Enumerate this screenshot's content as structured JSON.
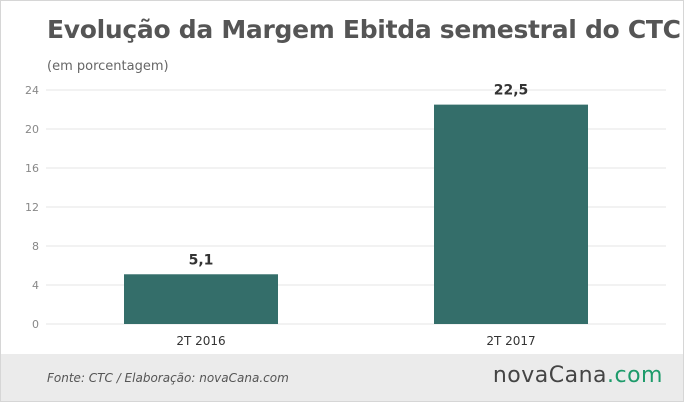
{
  "title": "Evolução da Margem Ebitda semestral do CTC",
  "subtitle": "(em porcentagem)",
  "footer": {
    "source": "Fonte: CTC / Elaboração: novaCana.com",
    "logo_main": "novaCana",
    "logo_dot": ".",
    "logo_tld": "com"
  },
  "colors": {
    "bar": "#346e6a",
    "grid": "#e4e4e4",
    "axis_text": "#888888",
    "label_text": "#333333",
    "logo_accent": "#1e9b6b"
  },
  "chart_data": {
    "type": "bar",
    "title": "Evolução da Margem Ebitda semestral do CTC",
    "subtitle": "(em porcentagem)",
    "categories": [
      "2T 2016",
      "2T 2017"
    ],
    "values": [
      5.1,
      22.5
    ],
    "value_labels": [
      "5,1",
      "22,5"
    ],
    "yticks": [
      0,
      4,
      8,
      12,
      16,
      20,
      24
    ],
    "ylim": [
      0,
      24
    ],
    "xlabel": "",
    "ylabel": "",
    "grid": true,
    "legend": "none"
  }
}
